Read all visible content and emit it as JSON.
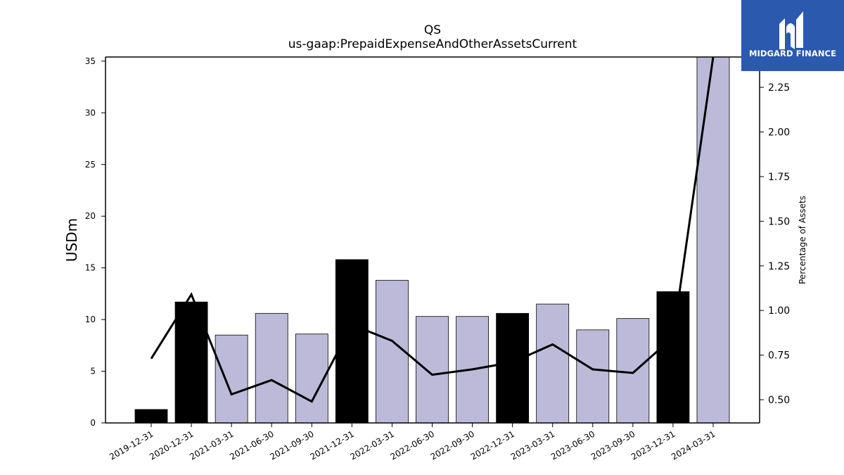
{
  "chart_data": {
    "type": "bar",
    "title": "QS",
    "subtitle": "us-gaap:PrepaidExpenseAndOtherAssetsCurrent",
    "ylabel": "USDm",
    "y2label": "Percentage of Assets",
    "ylim": [
      0,
      35.4
    ],
    "y2lim": [
      0.37,
      2.42
    ],
    "yticks": [
      0,
      5,
      10,
      15,
      20,
      25,
      30,
      35
    ],
    "y2ticks": [
      "0.50",
      "0.75",
      "1.00",
      "1.25",
      "1.50",
      "1.75",
      "2.00",
      "2.25"
    ],
    "categories": [
      "2019-12-31",
      "2020-12-31",
      "2021-03-31",
      "2021-06-30",
      "2021-09-30",
      "2021-12-31",
      "2022-03-31",
      "2022-06-30",
      "2022-09-30",
      "2022-12-31",
      "2023-03-31",
      "2023-06-30",
      "2023-09-30",
      "2023-12-31",
      "2024-03-31"
    ],
    "series": [
      {
        "values": [
          1.3,
          11.7,
          8.5,
          10.6,
          8.6,
          15.8,
          13.8,
          10.3,
          10.3,
          10.6,
          11.5,
          9.0,
          10.1,
          12.7,
          35.4
        ],
        "annual": [
          true,
          true,
          false,
          false,
          false,
          true,
          false,
          false,
          false,
          true,
          false,
          false,
          false,
          true,
          false
        ]
      },
      {
        "values": [
          0.73,
          1.09,
          0.53,
          0.61,
          0.49,
          0.92,
          0.83,
          0.64,
          0.67,
          0.71,
          0.81,
          0.67,
          0.65,
          0.85,
          2.42
        ]
      }
    ],
    "colors": {
      "annual": "#000000",
      "quarterly": "#bdbad9",
      "line": "#000000"
    },
    "grid": false
  },
  "logo": {
    "text": "MIDGARD FINANCE",
    "color": "#2b59ae"
  }
}
